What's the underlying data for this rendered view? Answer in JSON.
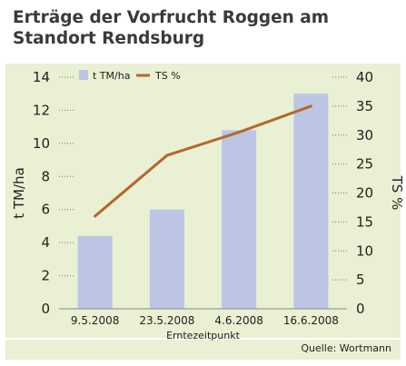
{
  "chart_data": {
    "type": "bar",
    "title_lines": [
      "Erträge der Vorfrucht Roggen am",
      "Standort Rendsburg"
    ],
    "categories": [
      "9.5.2008",
      "23.5.2008",
      "4.6.2008",
      "16.6.2008"
    ],
    "xlabel": "Erntezeitpunkt",
    "ylabel_left": "t TM/ha",
    "ylabel_right": "TS %",
    "ylim_left": [
      0,
      14
    ],
    "yticks_left": [
      0,
      2,
      4,
      6,
      8,
      10,
      12,
      14
    ],
    "ylim_right": [
      0,
      40
    ],
    "yticks_right": [
      0,
      5,
      10,
      15,
      20,
      25,
      30,
      35,
      40
    ],
    "series": [
      {
        "name": "t TM/ha",
        "type": "bar",
        "axis": "left",
        "color": "#bcc6e4",
        "values": [
          4.4,
          6.0,
          10.8,
          13.0
        ]
      },
      {
        "name": "TS %",
        "type": "line",
        "axis": "right",
        "color": "#b5672a",
        "values": [
          16,
          26.5,
          30.5,
          35
        ]
      }
    ],
    "legend_position": "top-left",
    "grid": "dotted tick guides",
    "background_color": "#e9f0d3",
    "source": "Quelle: Wortmann"
  }
}
